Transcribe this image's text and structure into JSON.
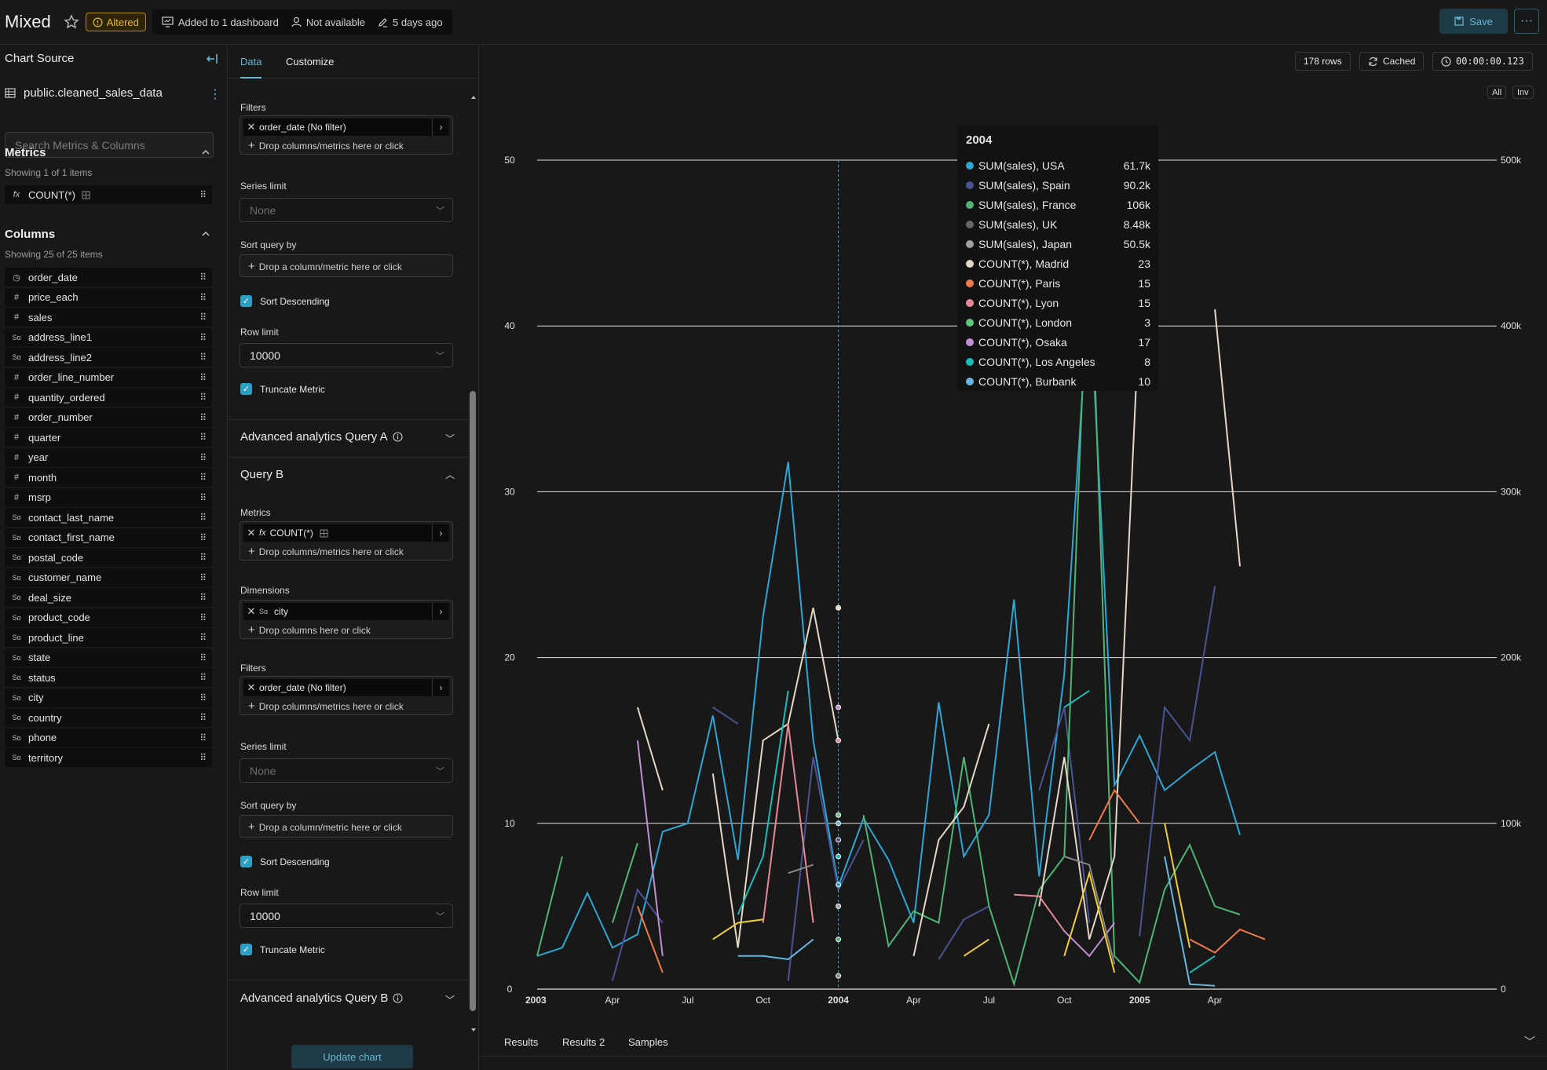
{
  "header": {
    "title": "Mixed",
    "altered": "Altered",
    "dashboards": "Added to 1 dashboard",
    "owner": "Not available",
    "modified": "5 days ago",
    "save": "Save"
  },
  "source": {
    "heading": "Chart Source",
    "dataset": "public.cleaned_sales_data",
    "search_placeholder": "Search Metrics & Columns",
    "metrics_heading": "Metrics",
    "metrics_showing": "Showing 1 of 1 items",
    "metrics": [
      "COUNT(*)"
    ],
    "columns_heading": "Columns",
    "columns_showing": "Showing 25 of 25 items",
    "columns": [
      {
        "name": "order_date",
        "type": "time"
      },
      {
        "name": "price_each",
        "type": "#"
      },
      {
        "name": "sales",
        "type": "#"
      },
      {
        "name": "address_line1",
        "type": "abc"
      },
      {
        "name": "address_line2",
        "type": "abc"
      },
      {
        "name": "order_line_number",
        "type": "#"
      },
      {
        "name": "quantity_ordered",
        "type": "#"
      },
      {
        "name": "order_number",
        "type": "#"
      },
      {
        "name": "quarter",
        "type": "#"
      },
      {
        "name": "year",
        "type": "#"
      },
      {
        "name": "month",
        "type": "#"
      },
      {
        "name": "msrp",
        "type": "#"
      },
      {
        "name": "contact_last_name",
        "type": "abc"
      },
      {
        "name": "contact_first_name",
        "type": "abc"
      },
      {
        "name": "postal_code",
        "type": "abc"
      },
      {
        "name": "customer_name",
        "type": "abc"
      },
      {
        "name": "deal_size",
        "type": "abc"
      },
      {
        "name": "product_code",
        "type": "abc"
      },
      {
        "name": "product_line",
        "type": "abc"
      },
      {
        "name": "state",
        "type": "abc"
      },
      {
        "name": "status",
        "type": "abc"
      },
      {
        "name": "city",
        "type": "abc"
      },
      {
        "name": "country",
        "type": "abc"
      },
      {
        "name": "phone",
        "type": "abc"
      },
      {
        "name": "territory",
        "type": "abc"
      }
    ],
    "type_glyphs": {
      "time": "◷",
      "#": "#",
      "abc": "Sɑ"
    }
  },
  "controls": {
    "tab_data": "Data",
    "tab_customize": "Customize",
    "filters_label": "Filters",
    "filter_a": "order_date (No filter)",
    "drop_metrics": "Drop columns/metrics here or click",
    "series_limit_label": "Series limit",
    "series_limit_value": "None",
    "sort_query_label": "Sort query by",
    "drop_sort": "Drop a column/metric here or click",
    "sort_desc": "Sort Descending",
    "row_limit_label": "Row limit",
    "row_limit_value": "10000",
    "truncate": "Truncate Metric",
    "adv_a": "Advanced analytics Query A",
    "query_b": "Query B",
    "metrics_label": "Metrics",
    "metric_b": "COUNT(*)",
    "dimensions_label": "Dimensions",
    "dimension_b": "city",
    "drop_columns": "Drop columns here or click",
    "filter_b": "order_date (No filter)",
    "adv_b": "Advanced analytics Query B",
    "update": "Update chart"
  },
  "chart_meta": {
    "rows": "178 rows",
    "cached": "Cached",
    "duration": "00:00:00.123",
    "btn_all": "All",
    "btn_inv": "Inv"
  },
  "tooltip": {
    "title": "2004",
    "rows": [
      {
        "label": "SUM(sales), USA",
        "value": "61.7k",
        "color": "#2fa6d4"
      },
      {
        "label": "SUM(sales), Spain",
        "value": "90.2k",
        "color": "#4a5394"
      },
      {
        "label": "SUM(sales), France",
        "value": "106k",
        "color": "#4fb474"
      },
      {
        "label": "SUM(sales), UK",
        "value": "8.48k",
        "color": "#666666"
      },
      {
        "label": "SUM(sales), Japan",
        "value": "50.5k",
        "color": "#a0a0a0"
      },
      {
        "label": "COUNT(*), Madrid",
        "value": "23",
        "color": "#e2d8c4"
      },
      {
        "label": "COUNT(*), Paris",
        "value": "15",
        "color": "#ef7b4d"
      },
      {
        "label": "COUNT(*), Lyon",
        "value": "15",
        "color": "#e48a97"
      },
      {
        "label": "COUNT(*), London",
        "value": "3",
        "color": "#5cc87c"
      },
      {
        "label": "COUNT(*), Osaka",
        "value": "17",
        "color": "#c38fd3"
      },
      {
        "label": "COUNT(*), Los Angeles",
        "value": "8",
        "color": "#1cbcb8"
      },
      {
        "label": "COUNT(*), Burbank",
        "value": "10",
        "color": "#68b6e0"
      }
    ]
  },
  "chart_data": {
    "type": "line",
    "x_ticks": [
      "2003",
      "Apr",
      "Jul",
      "Oct",
      "2004",
      "Apr",
      "Jul",
      "Oct",
      "2005",
      "Apr"
    ],
    "y_left_ticks": [
      "0",
      "10",
      "20",
      "30",
      "40",
      "50"
    ],
    "y_right_ticks": [
      "0",
      "100k",
      "200k",
      "300k",
      "400k",
      "500k"
    ],
    "ylim_left": [
      0,
      50
    ],
    "ylim_right": [
      0,
      500000
    ],
    "hover_x": "2004",
    "hover_points_left": [
      23,
      17,
      15,
      10.5,
      10,
      9,
      8,
      6.3,
      5,
      3,
      0.8
    ],
    "series": [
      {
        "color": "#2fa6d4",
        "axis": "right",
        "values": [
          [
            0,
            20000
          ],
          [
            1,
            25000
          ],
          [
            2,
            58000
          ],
          [
            3,
            25000
          ],
          [
            4,
            33000
          ],
          [
            5,
            95000
          ],
          [
            6,
            100000
          ],
          [
            7,
            165000
          ],
          [
            8,
            78000
          ],
          [
            9,
            225000
          ],
          [
            10,
            318000
          ],
          [
            11,
            150000
          ],
          [
            12,
            62000
          ],
          [
            13,
            103000
          ],
          [
            14,
            78000
          ],
          [
            15,
            40000
          ],
          [
            16,
            173000
          ],
          [
            17,
            80000
          ],
          [
            18,
            105000
          ],
          [
            19,
            235000
          ],
          [
            20,
            68000
          ],
          [
            21,
            190000
          ],
          [
            22,
            425000
          ],
          [
            23,
            123000
          ],
          [
            24,
            153000
          ],
          [
            25,
            120000
          ],
          [
            26,
            132000
          ],
          [
            27,
            143000
          ],
          [
            28,
            93000
          ]
        ]
      },
      {
        "color": "#4a5394",
        "axis": "right",
        "values": [
          [
            3,
            5000
          ],
          [
            4,
            60000
          ],
          [
            5,
            40000
          ],
          [
            7,
            170000
          ],
          [
            8,
            160000
          ],
          [
            10,
            5000
          ],
          [
            11,
            140000
          ],
          [
            12,
            60000
          ],
          [
            13,
            90000
          ],
          [
            16,
            18000
          ],
          [
            17,
            42000
          ],
          [
            18,
            50000
          ],
          [
            20,
            120000
          ],
          [
            21,
            170000
          ],
          [
            22,
            40000
          ],
          [
            24,
            32000
          ],
          [
            25,
            170000
          ],
          [
            26,
            150000
          ],
          [
            27,
            243000
          ]
        ]
      },
      {
        "color": "#4fb474",
        "axis": "right",
        "values": [
          [
            0,
            20000
          ],
          [
            1,
            80000
          ],
          [
            3,
            40000
          ],
          [
            4,
            88000
          ],
          [
            13,
            105000
          ],
          [
            14,
            26000
          ],
          [
            15,
            47000
          ],
          [
            16,
            40000
          ],
          [
            17,
            140000
          ],
          [
            18,
            50000
          ],
          [
            19,
            3000
          ],
          [
            20,
            60000
          ],
          [
            21,
            80000
          ],
          [
            22,
            470000
          ],
          [
            23,
            20000
          ],
          [
            24,
            4000
          ],
          [
            25,
            60000
          ],
          [
            26,
            87000
          ],
          [
            27,
            50000
          ],
          [
            28,
            45000
          ]
        ]
      },
      {
        "color": "#e2d8c4",
        "axis": "left",
        "values": [
          [
            4,
            17
          ],
          [
            5,
            12
          ],
          [
            7,
            13
          ],
          [
            8,
            2.5
          ],
          [
            9,
            15
          ],
          [
            10,
            16
          ],
          [
            11,
            23
          ],
          [
            12,
            15
          ],
          [
            15,
            2
          ],
          [
            16,
            9
          ],
          [
            17,
            11
          ],
          [
            18,
            16
          ],
          [
            20,
            5
          ],
          [
            21,
            14
          ],
          [
            22,
            3
          ],
          [
            23,
            8
          ],
          [
            24,
            41
          ],
          [
            27,
            41
          ],
          [
            28,
            25.5
          ]
        ]
      },
      {
        "color": "#ef7b4d",
        "axis": "left",
        "values": [
          [
            4,
            5
          ],
          [
            5,
            1
          ],
          [
            22,
            9
          ],
          [
            23,
            12
          ],
          [
            24,
            10
          ],
          [
            26,
            3
          ],
          [
            27,
            2.2
          ],
          [
            28,
            3.6
          ],
          [
            29,
            3
          ]
        ]
      },
      {
        "color": "#e48a97",
        "axis": "left",
        "values": [
          [
            9,
            4
          ],
          [
            10,
            16
          ],
          [
            11,
            4
          ],
          [
            19,
            5.7
          ],
          [
            20,
            5.6
          ],
          [
            21,
            3.5
          ]
        ]
      },
      {
        "color": "#c38fd3",
        "axis": "left",
        "values": [
          [
            4,
            15
          ],
          [
            5,
            2
          ],
          [
            8,
            1.8
          ],
          [
            10,
            9.5
          ],
          [
            21,
            3.5
          ],
          [
            22,
            2
          ],
          [
            23,
            4
          ]
        ]
      },
      {
        "color": "#1cbcb8",
        "axis": "left",
        "values": [
          [
            8,
            4.5
          ],
          [
            9,
            8
          ],
          [
            10,
            18
          ],
          [
            21,
            17
          ],
          [
            22,
            18
          ],
          [
            26,
            1
          ],
          [
            27,
            2
          ]
        ]
      },
      {
        "color": "#68b6e0",
        "axis": "left",
        "values": [
          [
            8,
            2
          ],
          [
            9,
            2
          ],
          [
            10,
            1.8
          ],
          [
            11,
            3
          ],
          [
            25,
            8
          ],
          [
            26,
            0.3
          ],
          [
            27,
            0.2
          ]
        ]
      },
      {
        "color": "#f2cd3a",
        "axis": "left",
        "values": [
          [
            7,
            3
          ],
          [
            8,
            4
          ],
          [
            9,
            4.2
          ],
          [
            17,
            2
          ],
          [
            18,
            3
          ],
          [
            21,
            2
          ],
          [
            22,
            7
          ],
          [
            23,
            1
          ],
          [
            25,
            10
          ],
          [
            26,
            2.5
          ]
        ]
      },
      {
        "color": "#888888",
        "axis": "right",
        "values": [
          [
            8,
            30000
          ],
          [
            10,
            70000
          ],
          [
            11,
            75000
          ],
          [
            19,
            100000
          ],
          [
            21,
            80000
          ],
          [
            22,
            75000
          ],
          [
            23,
            15000
          ]
        ]
      }
    ]
  }
}
